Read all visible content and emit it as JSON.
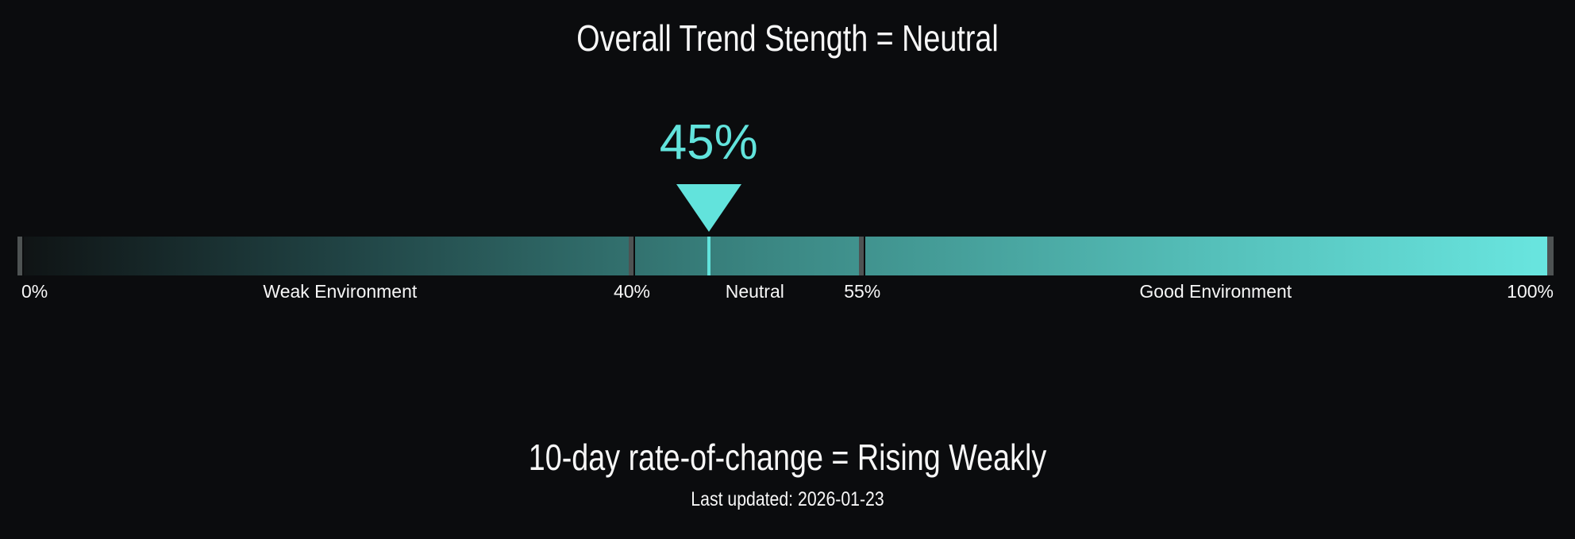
{
  "colors": {
    "background": "#0b0c0e",
    "accent": "#62e3dc",
    "text": "#f7f7f7",
    "tick": "#4e5353",
    "bar_gradient": [
      "#0f1314",
      "#214546",
      "#3a8581",
      "#55c0ba",
      "#69e6e0"
    ]
  },
  "header": {
    "title": "Overall Trend Stength = Neutral"
  },
  "gauge": {
    "value_label": "45%",
    "value_percent": 45,
    "scale": {
      "min_label": "0%",
      "max_label": "100%",
      "threshold1_label": "40%",
      "threshold1_percent": 40,
      "threshold2_label": "55%",
      "threshold2_percent": 55
    },
    "zones": [
      {
        "label": "Weak Environment",
        "center_percent": 21
      },
      {
        "label": "Neutral",
        "center_percent": 48
      },
      {
        "label": "Good Environment",
        "center_percent": 78
      }
    ]
  },
  "footer": {
    "title": "10-day rate-of-change = Rising Weakly",
    "last_updated": "Last updated: 2026-01-23"
  },
  "chart_data": {
    "type": "gauge",
    "title": "Overall Trend Stength = Neutral",
    "value": 45,
    "unit": "%",
    "range": [
      0,
      100
    ],
    "thresholds": [
      40,
      55
    ],
    "zones": [
      {
        "label": "Weak Environment",
        "from": 0,
        "to": 40
      },
      {
        "label": "Neutral",
        "from": 40,
        "to": 55
      },
      {
        "label": "Good Environment",
        "from": 55,
        "to": 100
      }
    ],
    "overall_status": "Neutral",
    "rate_of_change_10d": "Rising Weakly",
    "last_updated": "2026-01-23",
    "legend_position": "none",
    "grid": false
  }
}
